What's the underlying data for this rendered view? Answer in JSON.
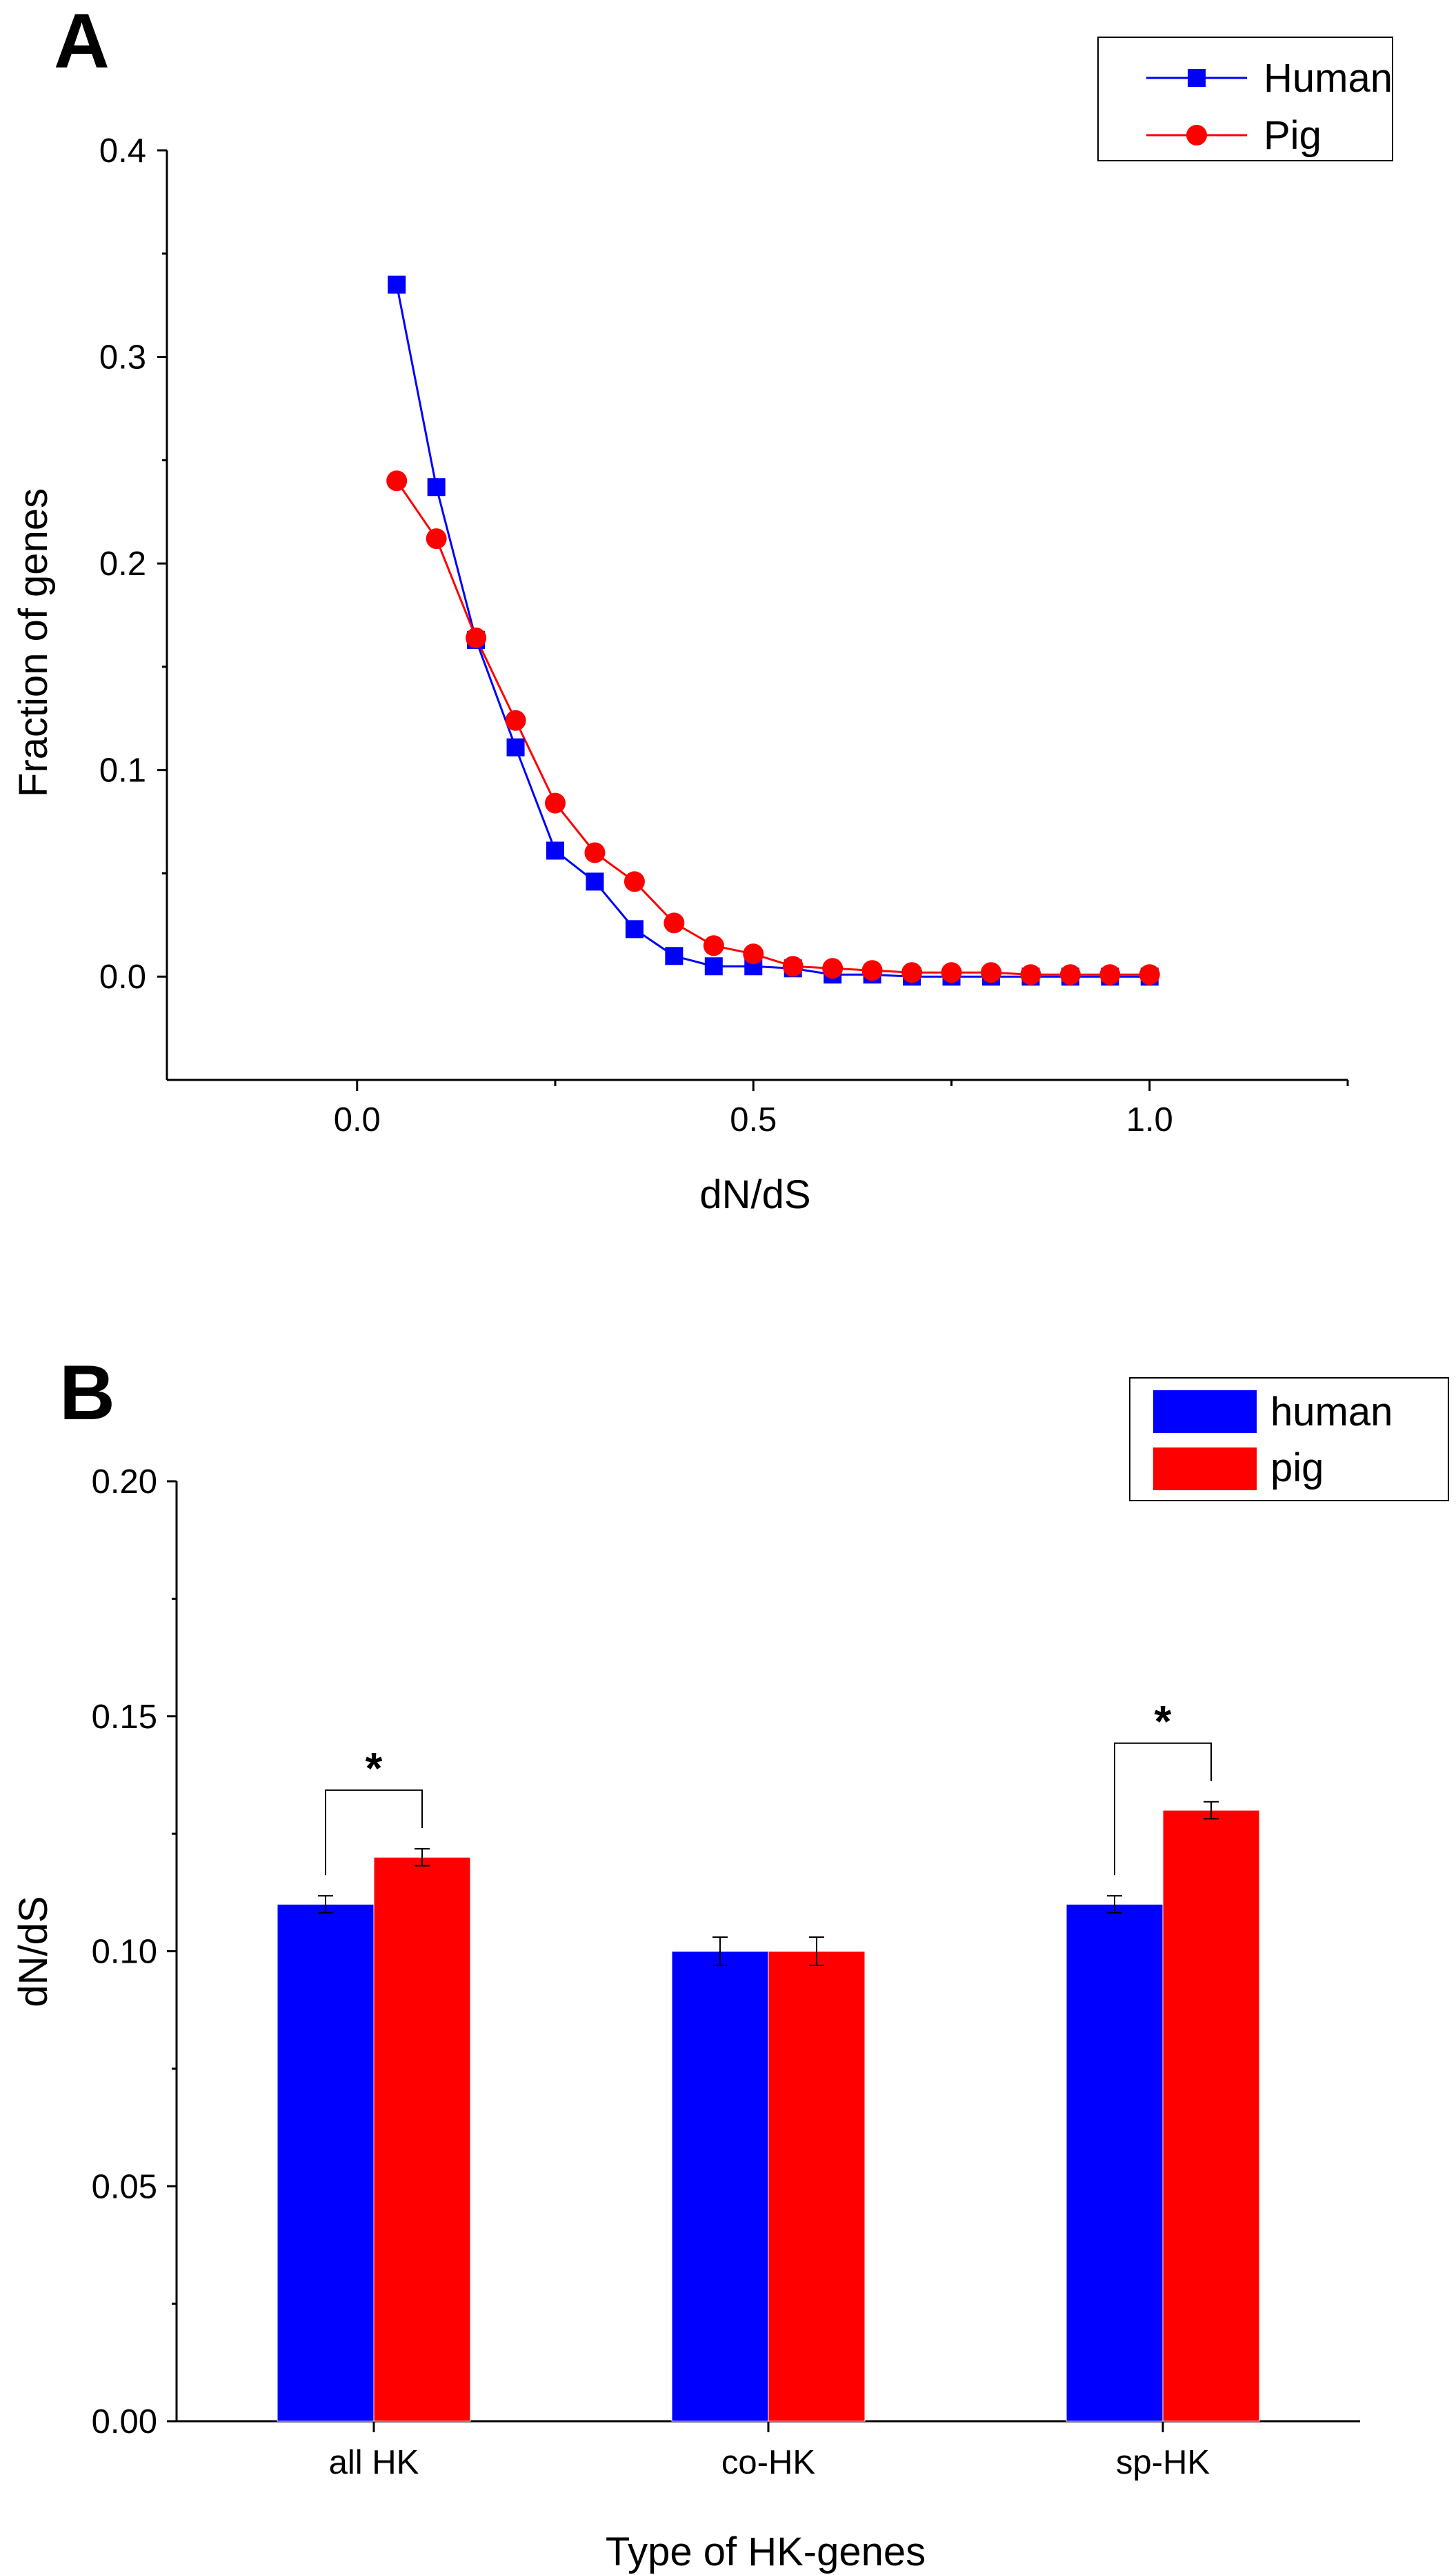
{
  "panels": [
    {
      "letter": "A"
    },
    {
      "letter": "B"
    }
  ],
  "chart_data": [
    {
      "type": "line",
      "title": "",
      "xlabel": "dN/dS",
      "ylabel": "Fraction of genes",
      "xlim": [
        -0.24,
        1.25
      ],
      "ylim": [
        -0.05,
        0.4
      ],
      "xticks": [
        0.0,
        0.5,
        1.0
      ],
      "xtick_labels": [
        "0.0",
        "0.5",
        "1.0"
      ],
      "yticks": [
        0.0,
        0.1,
        0.2,
        0.3,
        0.4
      ],
      "ytick_labels": [
        "0.0",
        "0.1",
        "0.2",
        "0.3",
        "0.4"
      ],
      "legend_position": "top-right",
      "x": [
        0.05,
        0.1,
        0.15,
        0.2,
        0.25,
        0.3,
        0.35,
        0.4,
        0.45,
        0.5,
        0.55,
        0.6,
        0.65,
        0.7,
        0.75,
        0.8,
        0.85,
        0.9,
        0.95,
        1.0
      ],
      "series": [
        {
          "name": "Human",
          "color": "#0000ff",
          "marker": "square",
          "values": [
            0.335,
            0.237,
            0.163,
            0.111,
            0.061,
            0.046,
            0.023,
            0.01,
            0.005,
            0.005,
            0.004,
            0.001,
            0.001,
            0.0,
            0.0,
            0.0,
            0.0,
            0.0,
            0.0,
            0.0
          ]
        },
        {
          "name": "Pig",
          "color": "#ff0000",
          "marker": "circle",
          "values": [
            0.24,
            0.212,
            0.164,
            0.124,
            0.084,
            0.06,
            0.046,
            0.026,
            0.015,
            0.011,
            0.005,
            0.004,
            0.003,
            0.002,
            0.002,
            0.002,
            0.001,
            0.001,
            0.001,
            0.001
          ]
        }
      ]
    },
    {
      "type": "bar",
      "title": "",
      "xlabel": "Type of HK-genes",
      "ylabel": "dN/dS",
      "ylim": [
        0,
        0.2
      ],
      "yticks": [
        0.0,
        0.05,
        0.1,
        0.15,
        0.2
      ],
      "ytick_labels": [
        "0.00",
        "0.05",
        "0.10",
        "0.15",
        "0.20"
      ],
      "legend_position": "top-right",
      "categories": [
        "all HK",
        "co-HK",
        "sp-HK"
      ],
      "series": [
        {
          "name": "human",
          "color": "#0000ff",
          "values": [
            0.11,
            0.1,
            0.11
          ],
          "errors": [
            0.0018,
            0.003,
            0.0018
          ]
        },
        {
          "name": "pig",
          "color": "#ff0000",
          "values": [
            0.12,
            0.1,
            0.13
          ],
          "errors": [
            0.0018,
            0.003,
            0.0018
          ]
        }
      ],
      "significance": [
        {
          "category": "all HK",
          "label": "*"
        },
        {
          "category": "sp-HK",
          "label": "*"
        }
      ]
    }
  ]
}
